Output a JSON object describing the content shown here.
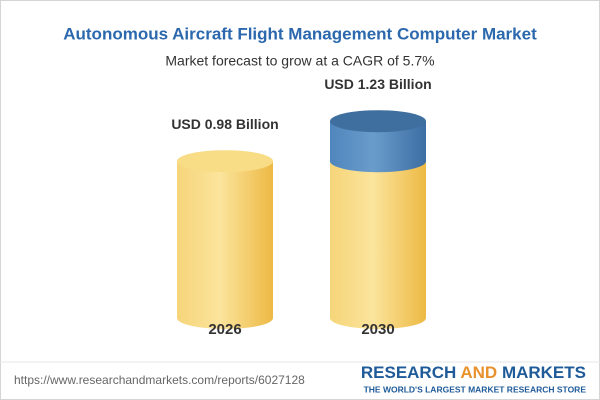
{
  "chart_data": {
    "type": "cylinder",
    "title": "Autonomous Aircraft Flight Management Computer Market",
    "subtitle": "Market forecast to grow at a CAGR of 5.7%",
    "categories": [
      "2026",
      "2030"
    ],
    "values": [
      0.98,
      1.23
    ],
    "value_labels": [
      "USD 0.98 Billion",
      "USD 1.23 Billion"
    ],
    "color": "#f3c95a",
    "growth_color": "#4a7db3"
  },
  "footer": {
    "url": "https://www.researchandmarkets.com/reports/6027128",
    "brand": [
      "RESEARCH",
      "AND",
      "MARKETS"
    ],
    "tagline": "THE WORLD'S LARGEST MARKET RESEARCH STORE"
  }
}
